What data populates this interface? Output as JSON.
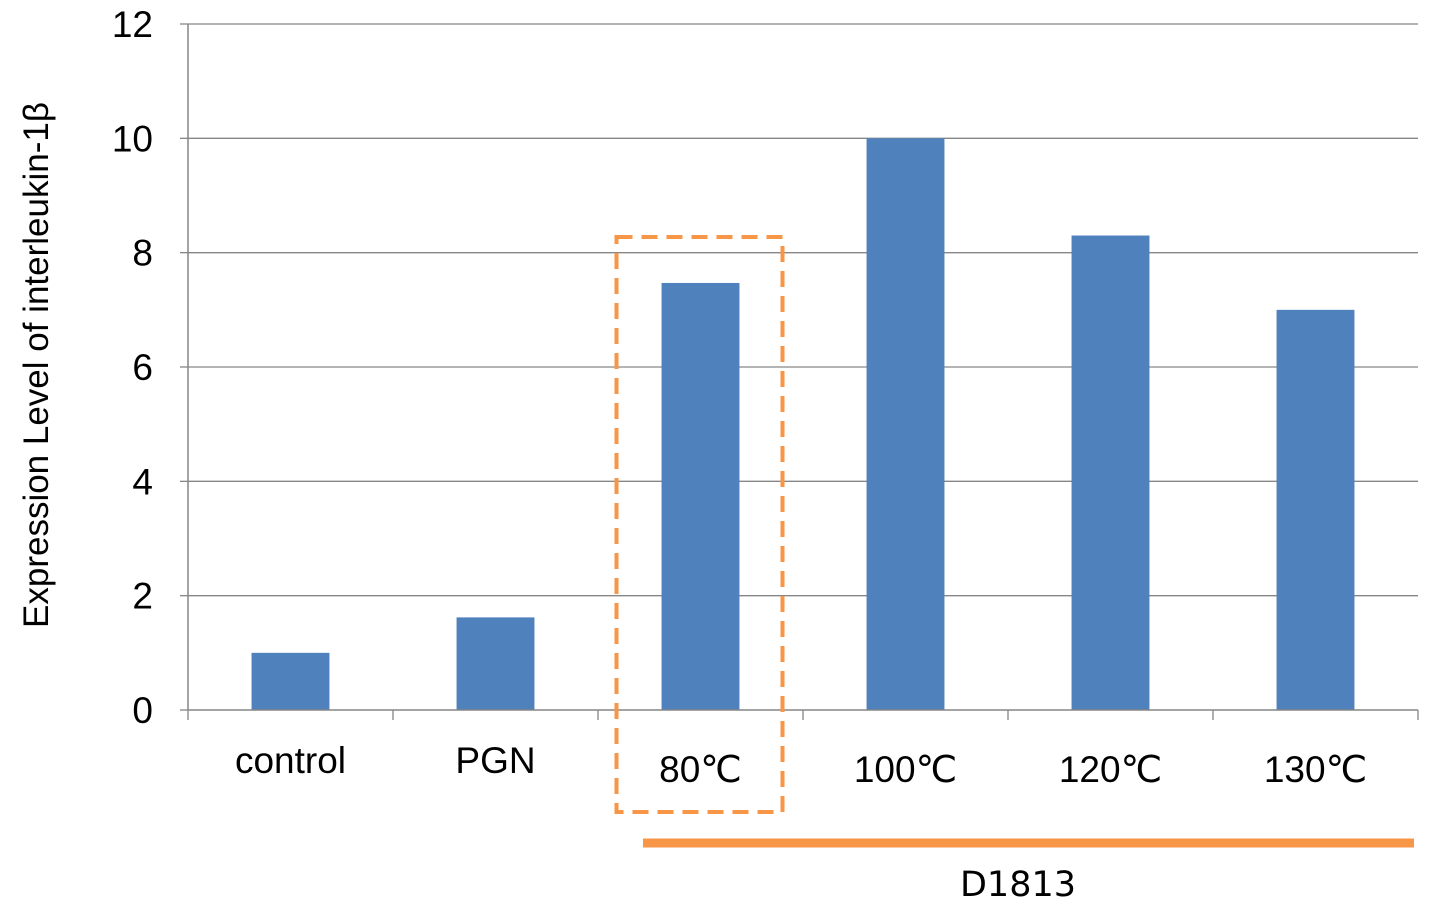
{
  "chart_data": {
    "type": "bar",
    "categories": [
      "control",
      "PGN",
      "80℃",
      "100℃",
      "120℃",
      "130℃"
    ],
    "values": [
      1.0,
      1.62,
      7.47,
      10.0,
      8.3,
      7.0
    ],
    "title": "",
    "xlabel": "",
    "ylabel": "Expression Level of interleukin-1β",
    "ylim": [
      0,
      12
    ],
    "yticks": [
      "0",
      "2",
      "4",
      "6",
      "8",
      "10",
      "12"
    ],
    "grid": true,
    "legend": "none",
    "bar_color": "#4F81BD",
    "annotations": {
      "highlight_category": "80℃",
      "highlight_style": "dashed box",
      "highlight_color": "#F79646",
      "group_label": "D1813",
      "group_categories": [
        "80℃",
        "100℃",
        "120℃",
        "130℃"
      ],
      "group_bar_color": "#F79646"
    }
  }
}
